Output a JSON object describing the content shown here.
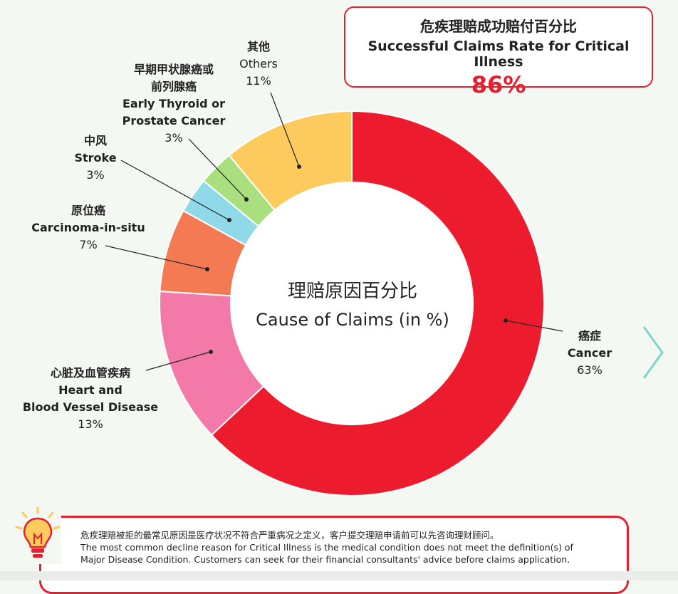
{
  "rate_box": {
    "title_zh": "危疾理赔成功赔付百分比",
    "title_en": "Successful Claims Rate for Critical Illness",
    "value": "86%"
  },
  "center": {
    "title_zh": "理赔原因百分比",
    "title_en": "Cause of Claims (in %)"
  },
  "labels": {
    "cancer": {
      "zh": "癌症",
      "en": "Cancer",
      "pct": "63%"
    },
    "heart": {
      "zh": "心脏及血管疾病",
      "en1": "Heart and",
      "en2": "Blood Vessel Disease",
      "pct": "13%"
    },
    "cis": {
      "zh": "原位癌",
      "en": "Carcinoma-in-situ",
      "pct": "7%"
    },
    "stroke": {
      "zh": "中风",
      "en": "Stroke",
      "pct": "3%"
    },
    "thyroid": {
      "zh1": "早期甲状腺癌或",
      "zh2": "前列腺癌",
      "en1": "Early Thyroid or",
      "en2": "Prostate Cancer",
      "pct": "3%"
    },
    "others": {
      "zh": "其他",
      "en": "Others",
      "pct": "11%"
    }
  },
  "note": {
    "line1": "危疾理赔被拒的最常见原因是医疗状况不符合严重病况之定义，客户提交理赔申请前可以先咨询理财顾问。",
    "line2": "The most common decline reason for Critical Illness is the medical condition does not meet the definition(s) of",
    "line3": "Major Disease Condition. Customers can seek for their financial consultants' advice before claims application."
  },
  "colors": {
    "accent": "#e3202f",
    "teal_arrow": "#7fd6c6"
  },
  "icons": {
    "next": "chevron-right-icon",
    "tip": "lightbulb-icon"
  },
  "chart_data": {
    "type": "pie",
    "donut": true,
    "title": "理赔原因百分比 Cause of Claims (in %)",
    "categories": [
      "Cancer",
      "Heart and Blood Vessel Disease",
      "Carcinoma-in-situ",
      "Stroke",
      "Early Thyroid or Prostate Cancer",
      "Others"
    ],
    "values": [
      63,
      13,
      7,
      3,
      3,
      11
    ],
    "colors": [
      "#ec1c2e",
      "#f279a8",
      "#f37a52",
      "#8fd9e8",
      "#a9df7f",
      "#fcca5d"
    ]
  }
}
